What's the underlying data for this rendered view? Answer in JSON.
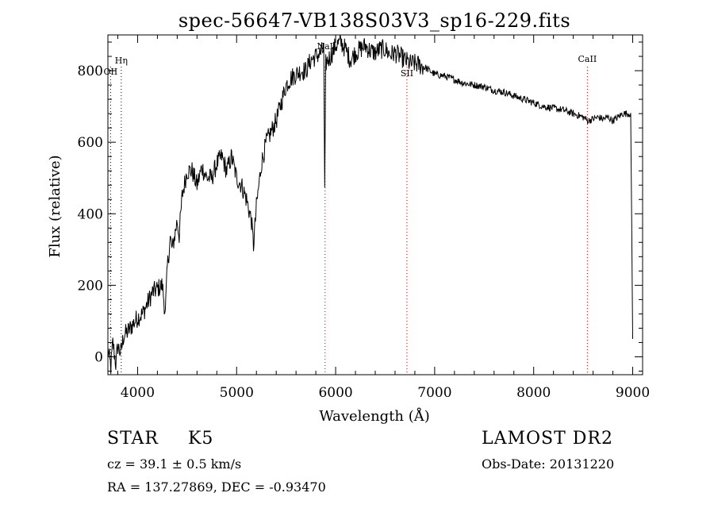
{
  "chart_data": {
    "type": "line",
    "title": "spec-56647-VB138S03V3_sp16-229.fits",
    "xlabel": "Wavelength (Å)",
    "ylabel": "Flux (relative)",
    "xlim": [
      3700,
      9100
    ],
    "ylim": [
      -50,
      900
    ],
    "xticks": [
      4000,
      5000,
      6000,
      7000,
      8000,
      9000
    ],
    "yticks": [
      0,
      200,
      400,
      600,
      800
    ],
    "grid": false,
    "line_color": "#000000",
    "line_markers": [
      {
        "label": "Hη",
        "x": 3835,
        "color": "#000000"
      },
      {
        "label": "OII",
        "x": 3727,
        "color": "#000000"
      },
      {
        "label": "NaI",
        "x": 5893,
        "color": "#cc0000"
      },
      {
        "label": "SII",
        "x": 6720,
        "color": "#cc0000"
      },
      {
        "label": "CaII",
        "x": 8542,
        "color": "#cc0000"
      }
    ],
    "series": [
      {
        "x": [
          3700,
          3730,
          3750,
          3780,
          3800,
          3830,
          3860,
          3900,
          3950,
          4000,
          4050,
          4100,
          4150,
          4200,
          4250,
          4280,
          4300,
          4330,
          4350,
          4400,
          4420,
          4450,
          4500,
          4550,
          4600,
          4650,
          4700,
          4750,
          4800,
          4850,
          4900,
          4950,
          5000,
          5050,
          5100,
          5150,
          5170,
          5200,
          5250,
          5300,
          5350,
          5400,
          5450,
          5500,
          5550,
          5600,
          5650,
          5700,
          5750,
          5800,
          5850,
          5880,
          5890,
          5900,
          5920,
          5950,
          6000,
          6050,
          6100,
          6150,
          6200,
          6250,
          6300,
          6350,
          6400,
          6450,
          6500,
          6550,
          6600,
          6650,
          6700,
          6750,
          6800,
          6850,
          6900,
          6950,
          7000,
          7100,
          7200,
          7300,
          7400,
          7500,
          7600,
          7700,
          7800,
          7900,
          8000,
          8100,
          8200,
          8300,
          8400,
          8500,
          8550,
          8600,
          8650,
          8700,
          8750,
          8800,
          8850,
          8900,
          8950,
          8980,
          9000
        ],
        "y": [
          20,
          -30,
          40,
          -20,
          30,
          10,
          60,
          70,
          90,
          110,
          120,
          150,
          180,
          190,
          200,
          120,
          250,
          330,
          300,
          380,
          340,
          450,
          520,
          520,
          480,
          530,
          500,
          500,
          540,
          560,
          520,
          560,
          500,
          480,
          440,
          380,
          310,
          420,
          540,
          600,
          630,
          660,
          710,
          760,
          780,
          790,
          800,
          800,
          830,
          840,
          850,
          860,
          450,
          820,
          830,
          840,
          870,
          880,
          860,
          830,
          850,
          860,
          870,
          855,
          850,
          860,
          860,
          845,
          850,
          840,
          830,
          820,
          820,
          815,
          810,
          800,
          790,
          785,
          775,
          765,
          760,
          755,
          745,
          740,
          730,
          720,
          710,
          700,
          695,
          690,
          680,
          670,
          660,
          665,
          670,
          665,
          670,
          660,
          670,
          680,
          680,
          680,
          50
        ]
      }
    ]
  },
  "footer": {
    "object_class": "STAR",
    "subclass": "K5",
    "survey": "LAMOST DR2",
    "cz": "cz = 39.1 ± 0.5 km/s",
    "obs_date": "Obs-Date: 20131220",
    "coords": "RA = 137.27869, DEC =  -0.93470"
  }
}
